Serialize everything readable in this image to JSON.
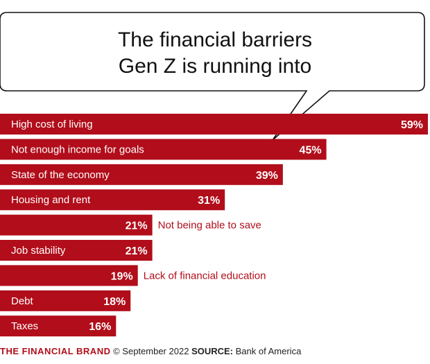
{
  "chart_data": {
    "type": "bar",
    "orientation": "horizontal",
    "title": "The financial barriers Gen Z is running into",
    "title_lines": [
      "The financial barriers",
      "Gen Z is running into"
    ],
    "categories": [
      "High cost of living",
      "Not enough income for goals",
      "State of the economy",
      "Housing and rent",
      "Not being able to save",
      "Job stability",
      "Lack of financial education",
      "Debt",
      "Taxes"
    ],
    "values": [
      59,
      45,
      39,
      31,
      21,
      21,
      19,
      18,
      16
    ],
    "value_labels": [
      "59%",
      "45%",
      "39%",
      "31%",
      "21%",
      "21%",
      "19%",
      "18%",
      "16%"
    ],
    "xlim": [
      0,
      59
    ],
    "grid": false,
    "legend": "none",
    "bar_color": "#b10d1a"
  },
  "footer": {
    "brand": "THE FINANCIAL BRAND",
    "copyright": "© September 2022",
    "source_label": "SOURCE:",
    "source": "Bank of America"
  }
}
